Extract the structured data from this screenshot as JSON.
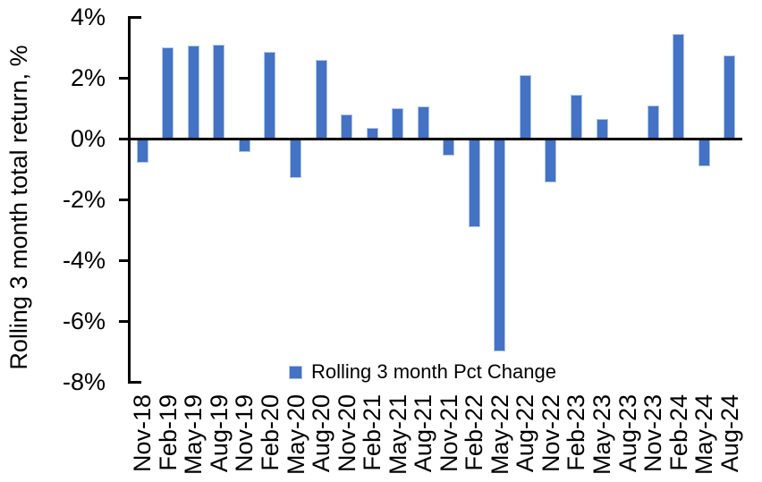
{
  "chart_data": {
    "type": "bar",
    "title": "",
    "xlabel": "",
    "ylabel": "Rolling 3 month total return, %",
    "ylim": [
      -8,
      4
    ],
    "ytick_step": 2,
    "yticks": [
      {
        "value": 4,
        "label": "4%"
      },
      {
        "value": 2,
        "label": "2%"
      },
      {
        "value": 0,
        "label": "0%"
      },
      {
        "value": -2,
        "label": "-2%"
      },
      {
        "value": -4,
        "label": "-4%"
      },
      {
        "value": -6,
        "label": "-6%"
      },
      {
        "value": -8,
        "label": "-8%"
      }
    ],
    "grid": false,
    "legend_position": "bottom-center",
    "categories": [
      "Nov-18",
      "Feb-19",
      "May-19",
      "Aug-19",
      "Nov-19",
      "Feb-20",
      "May-20",
      "Aug-20",
      "Nov-20",
      "Feb-21",
      "May-21",
      "Aug-21",
      "Nov-21",
      "Feb-22",
      "May-22",
      "Aug-22",
      "Nov-22",
      "Feb-23",
      "May-23",
      "Aug-23",
      "Nov-23",
      "Feb-24",
      "May-24",
      "Aug-24"
    ],
    "series": [
      {
        "name": "Rolling 3 month Pct Change",
        "values": [
          -0.8,
          3.0,
          3.05,
          3.1,
          -0.45,
          2.85,
          -1.3,
          2.6,
          0.8,
          0.35,
          1.0,
          1.05,
          -0.55,
          -2.9,
          -7.0,
          2.1,
          -1.45,
          1.45,
          0.65,
          0.0,
          1.1,
          3.45,
          -0.9,
          2.75
        ]
      }
    ],
    "colors": {
      "bar_fill": "#4472C4",
      "bar_border": "#A9C7E8",
      "axis": "#000000",
      "text": "#000000"
    }
  }
}
